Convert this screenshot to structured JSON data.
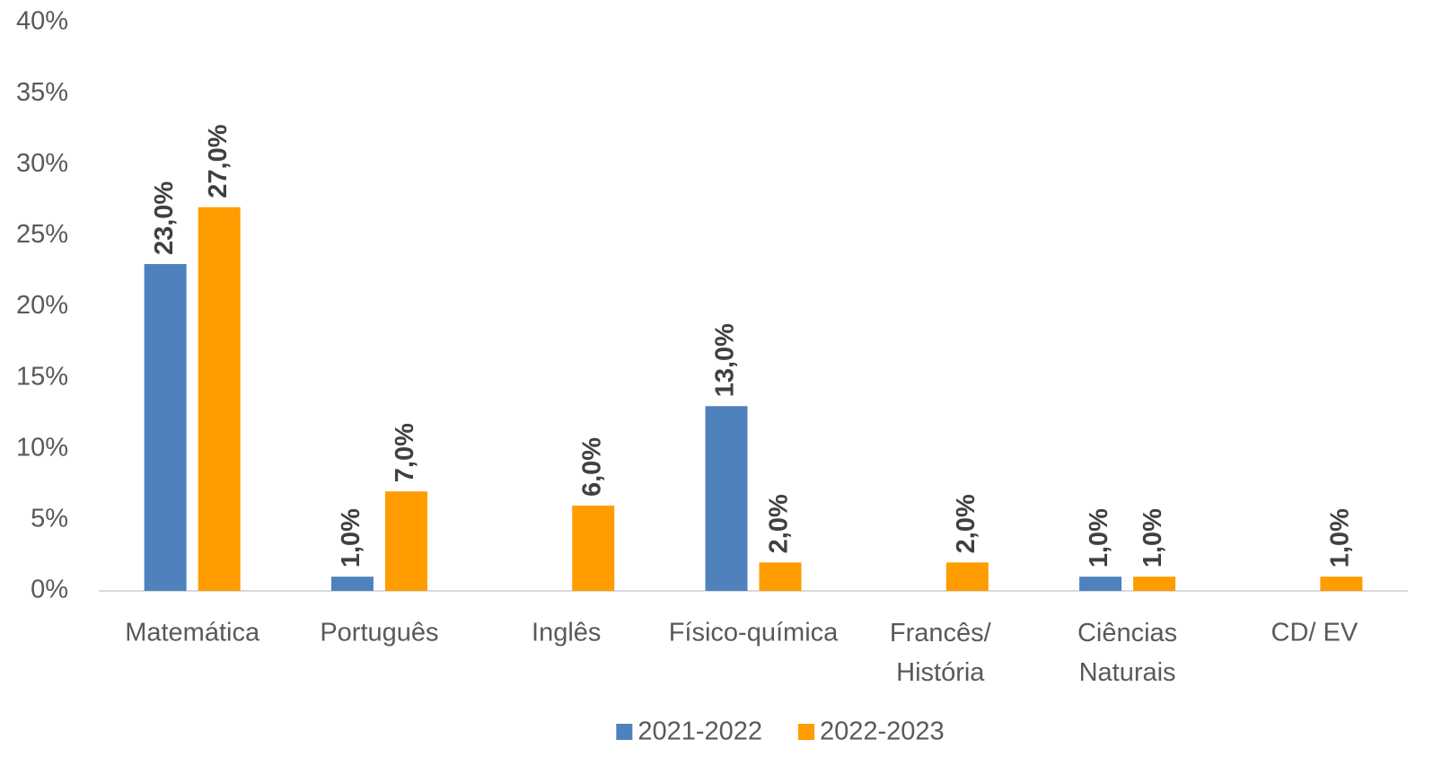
{
  "chart_data": {
    "type": "bar",
    "categories": [
      "Matemática",
      "Português",
      "Inglês",
      "Físico-química",
      "Francês/ História",
      "Ciências Naturais",
      "CD/ EV"
    ],
    "series": [
      {
        "name": "2021-2022",
        "color": "#4f81bd",
        "values": [
          23,
          1,
          null,
          13,
          null,
          1,
          null
        ],
        "value_labels": [
          "23,0%",
          "1,0%",
          null,
          "13,0%",
          null,
          "1,0%",
          null
        ]
      },
      {
        "name": "2022-2023",
        "color": "#ff9c00",
        "values": [
          27,
          7,
          6,
          2,
          2,
          1,
          1
        ],
        "value_labels": [
          "27,0%",
          "7,0%",
          "6,0%",
          "2,0%",
          "2,0%",
          "1,0%",
          "1,0%"
        ]
      }
    ],
    "ylim": [
      0,
      40
    ],
    "yticks": [
      {
        "value": 0,
        "label": "0%"
      },
      {
        "value": 5,
        "label": "5%"
      },
      {
        "value": 10,
        "label": "10%"
      },
      {
        "value": 15,
        "label": "15%"
      },
      {
        "value": 20,
        "label": "20%"
      },
      {
        "value": 25,
        "label": "25%"
      },
      {
        "value": 30,
        "label": "30%"
      },
      {
        "value": 35,
        "label": "35%"
      },
      {
        "value": 40,
        "label": "40%"
      }
    ],
    "grid": false,
    "legend": "bottom"
  }
}
